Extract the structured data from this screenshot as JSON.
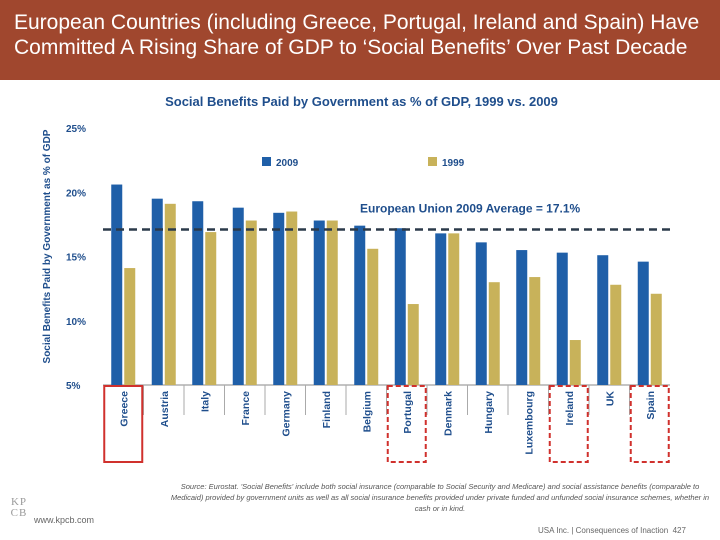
{
  "header": {
    "title": "European Countries (including Greece, Portugal, Ireland and Spain) Have Committed A Rising Share of GDP to ‘Social Benefits’ Over Past Decade"
  },
  "chart_data": {
    "type": "bar",
    "title": "Social Benefits Paid by Government as % of GDP, 1999 vs. 2009",
    "ylabel": "Social Benefits Paid by Government as % of GDP",
    "xlabel": "",
    "ylim": [
      5,
      25
    ],
    "yticks": [
      5,
      10,
      15,
      20,
      25
    ],
    "ytick_labels": [
      "5%",
      "10%",
      "15%",
      "20%",
      "25%"
    ],
    "categories": [
      "Greece",
      "Austria",
      "Italy",
      "France",
      "Germany",
      "Finland",
      "Belgium",
      "Portugal",
      "Denmark",
      "Hungary",
      "Luxembourg",
      "Ireland",
      "UK",
      "Spain"
    ],
    "series": [
      {
        "name": "2009",
        "color": "#1f5fa8",
        "values": [
          20.6,
          19.5,
          19.3,
          18.8,
          18.4,
          17.8,
          17.4,
          17.2,
          16.8,
          16.1,
          15.5,
          15.3,
          15.1,
          14.6
        ]
      },
      {
        "name": "1999",
        "color": "#c8b25a",
        "values": [
          14.1,
          19.1,
          16.9,
          17.8,
          18.5,
          17.8,
          15.6,
          11.3,
          16.8,
          13.0,
          13.4,
          8.5,
          12.8,
          12.1
        ]
      }
    ],
    "reference_line": {
      "value": 17.1,
      "label": "European Union 2009 Average = 17.1%",
      "color": "#2b3a4a"
    },
    "highlighted": [
      {
        "category": "Greece",
        "style": "solid"
      },
      {
        "category": "Portugal",
        "style": "dashed"
      },
      {
        "category": "Ireland",
        "style": "dashed"
      },
      {
        "category": "Spain",
        "style": "dashed"
      }
    ],
    "highlight_color": "#d0312d",
    "legend_position": "top"
  },
  "footer": {
    "source": "Source: Eurostat. 'Social Benefits' include both social insurance (comparable to Social Security and Medicare) and social assistance benefits (comparable to Medicaid) provided by government units as well as all social insurance benefits provided under private funded and unfunded social insurance schemes, whether in cash or in kind.",
    "website": "www.kpcb.com",
    "right_text": "USA Inc. | Consequences of Inaction",
    "page_number": "427",
    "logo_top": "KP",
    "logo_bottom": "CB"
  }
}
